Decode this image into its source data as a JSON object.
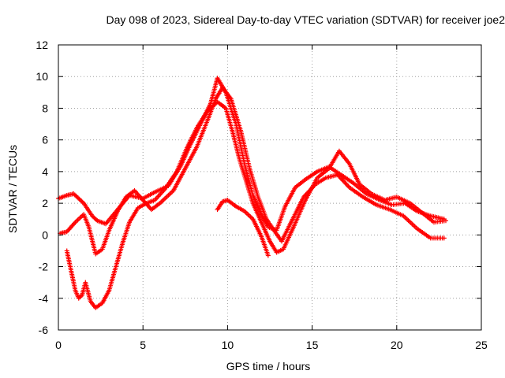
{
  "chart_data": {
    "type": "scatter",
    "title": "Day 098 of 2023, Sidereal Day-to-day VTEC variation (SDTVAR) for receiver joe2",
    "xlabel": "GPS time / hours",
    "ylabel": "SDTVAR / TECUs",
    "xlim": [
      0,
      25
    ],
    "ylim": [
      -6,
      12
    ],
    "xticks": [
      0,
      5,
      10,
      15,
      20,
      25
    ],
    "yticks": [
      -6,
      -4,
      -2,
      0,
      2,
      4,
      6,
      8,
      10,
      12
    ],
    "grid": true,
    "marker": "+",
    "color": "#ff0000",
    "series": [
      {
        "name": "trace-1",
        "x": [
          0,
          0.5,
          0.9,
          1.5,
          2.0,
          2.3,
          2.8,
          3.5,
          4.2,
          5.0,
          5.7,
          6.5,
          7.2,
          7.8,
          8.4,
          9.0,
          9.4,
          9.9,
          10.5,
          11.0,
          11.5,
          12.0,
          12.4,
          12.9,
          13.4,
          14.0,
          14.6,
          15.3,
          16.0,
          16.7,
          17.4,
          18.2,
          19.0,
          19.7,
          20.5,
          21.2,
          22.0,
          22.8
        ],
        "y": [
          2.3,
          2.5,
          2.6,
          2.0,
          1.2,
          0.9,
          0.7,
          1.6,
          2.5,
          2.3,
          2.7,
          3.1,
          4.3,
          5.7,
          7.0,
          8.3,
          9.9,
          9.0,
          7.0,
          4.5,
          2.5,
          1.3,
          0.5,
          0.3,
          1.8,
          3.0,
          3.5,
          4.0,
          4.3,
          3.8,
          3.3,
          2.6,
          2.2,
          1.9,
          2.0,
          1.5,
          1.2,
          1.0
        ]
      },
      {
        "name": "trace-2",
        "x": [
          0.1,
          0.5,
          1.0,
          1.5,
          1.8,
          2.2,
          2.6,
          3.0,
          3.5,
          4.0,
          4.5,
          5.0,
          5.5,
          6.0,
          6.8,
          7.5,
          8.2,
          8.8,
          9.3,
          9.7,
          10.2,
          10.8,
          11.3,
          11.8,
          12.3,
          12.8,
          13.2,
          13.8,
          14.5,
          15.2,
          15.8,
          16.5,
          17.2,
          18.0,
          18.8,
          19.6,
          20.4,
          21.2,
          22.0,
          22.8
        ],
        "y": [
          0.1,
          0.2,
          0.8,
          1.3,
          0.5,
          -1.2,
          -0.9,
          0.3,
          1.5,
          2.4,
          2.8,
          2.2,
          1.6,
          2.0,
          2.8,
          4.2,
          5.6,
          7.2,
          8.6,
          9.3,
          8.6,
          6.5,
          4.2,
          2.4,
          1.0,
          0.2,
          -0.4,
          0.9,
          2.4,
          3.2,
          3.6,
          3.8,
          3.0,
          2.4,
          1.9,
          1.6,
          1.2,
          0.4,
          -0.2,
          -0.2
        ]
      },
      {
        "name": "trace-3",
        "x": [
          0.5,
          0.8,
          1.0,
          1.2,
          1.4,
          1.6,
          1.9,
          2.2,
          2.6,
          3.0,
          3.4,
          3.8,
          4.2,
          4.7,
          5.2,
          5.7,
          6.3,
          7.0,
          7.6,
          8.2,
          8.8,
          9.4,
          9.9,
          10.3,
          10.7,
          11.1,
          11.5,
          12.0,
          12.5,
          12.9,
          13.3,
          13.9,
          14.6,
          15.3,
          16.0,
          16.6,
          17.2,
          17.8,
          18.5,
          19.3,
          20.0,
          20.8,
          21.5,
          22.2,
          22.9
        ],
        "y": [
          -1.0,
          -2.5,
          -3.5,
          -4.0,
          -3.8,
          -3.0,
          -4.2,
          -4.6,
          -4.3,
          -3.5,
          -2.0,
          -0.5,
          0.8,
          1.7,
          2.0,
          2.2,
          2.9,
          4.0,
          5.5,
          6.8,
          7.8,
          8.4,
          8.0,
          6.5,
          4.8,
          3.4,
          2.0,
          0.8,
          -0.4,
          -1.1,
          -0.9,
          0.5,
          2.2,
          3.6,
          4.2,
          5.3,
          4.5,
          3.2,
          2.6,
          2.2,
          2.4,
          2.0,
          1.4,
          0.8,
          0.9
        ]
      },
      {
        "name": "trace-4",
        "x": [
          9.4,
          9.7,
          10.0,
          10.5,
          11.0,
          11.5,
          12.0,
          12.4
        ],
        "y": [
          1.6,
          2.1,
          2.2,
          1.8,
          1.5,
          1.0,
          -0.1,
          -1.3
        ]
      }
    ]
  }
}
